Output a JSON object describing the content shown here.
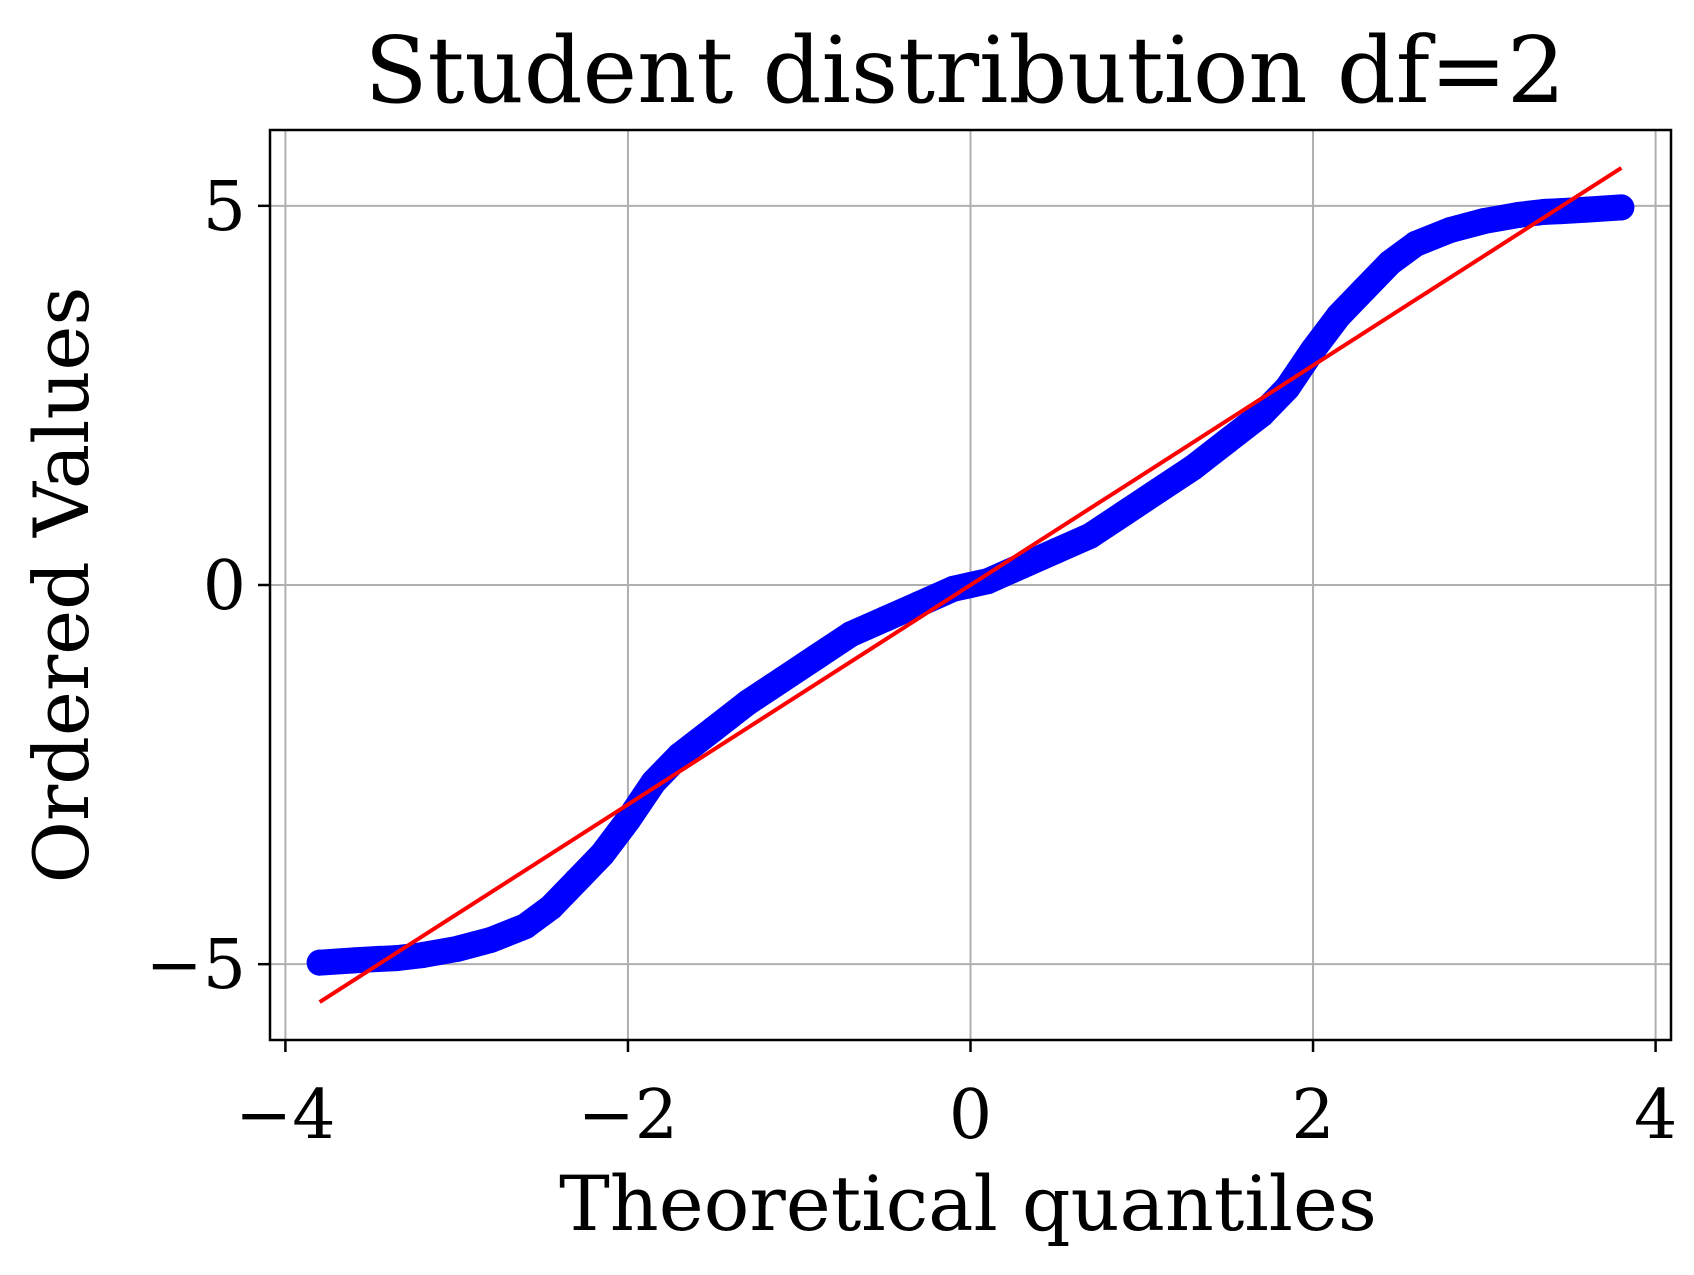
{
  "chart_data": {
    "type": "scatter",
    "title": "Student distribution df=2",
    "xlabel": "Theoretical quantiles",
    "ylabel": "Ordered Values",
    "xlim": [
      -4.09,
      4.09
    ],
    "ylim": [
      -6.0,
      6.0
    ],
    "xticks": [
      -4,
      -2,
      0,
      2,
      4
    ],
    "xtick_labels": [
      "−4",
      "−2",
      "0",
      "2",
      "4"
    ],
    "yticks": [
      -5,
      0,
      5
    ],
    "ytick_labels": [
      "−5",
      "0",
      "5"
    ],
    "grid": true,
    "series": [
      {
        "kind": "points",
        "color": "#0000ff",
        "x": [
          -3.8,
          -3.6,
          -3.45,
          -3.35,
          -3.2,
          -3.0,
          -2.8,
          -2.6,
          -2.45,
          -2.3,
          -2.15,
          -2.0,
          -1.85,
          -1.7,
          -1.5,
          -1.3,
          -1.1,
          -0.9,
          -0.7,
          -0.5,
          -0.3,
          -0.1,
          0.0,
          0.1,
          0.3,
          0.5,
          0.7,
          0.9,
          1.1,
          1.3,
          1.5,
          1.7,
          1.85,
          2.0,
          2.15,
          2.3,
          2.45,
          2.6,
          2.8,
          3.0,
          3.2,
          3.35,
          3.45,
          3.6,
          3.8
        ],
        "y": [
          -4.98,
          -4.95,
          -4.93,
          -4.92,
          -4.88,
          -4.8,
          -4.68,
          -4.5,
          -4.25,
          -3.9,
          -3.55,
          -3.1,
          -2.6,
          -2.25,
          -1.9,
          -1.55,
          -1.25,
          -0.95,
          -0.65,
          -0.45,
          -0.25,
          -0.05,
          0.0,
          0.05,
          0.25,
          0.45,
          0.65,
          0.95,
          1.25,
          1.55,
          1.9,
          2.25,
          2.6,
          3.1,
          3.55,
          3.9,
          4.25,
          4.5,
          4.68,
          4.8,
          4.88,
          4.92,
          4.93,
          4.95,
          4.98
        ]
      },
      {
        "kind": "line",
        "color": "#ff0000",
        "x": [
          -3.8,
          3.8
        ],
        "y": [
          -5.5,
          5.5
        ]
      }
    ]
  }
}
